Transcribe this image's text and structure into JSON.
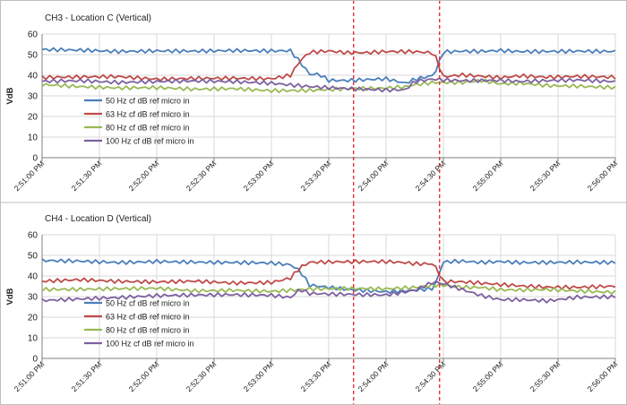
{
  "colors": {
    "series": [
      "#4a7ebb",
      "#be4b48",
      "#98b954",
      "#7d60a0"
    ],
    "grid": "#d9d9d9",
    "axis": "#7f7f7f",
    "divider": "#bfbfbf",
    "marker": "#e0202a"
  },
  "chart_data": [
    {
      "type": "line",
      "title": "CH3 - Location C (Vertical)",
      "ylabel": "VdB",
      "xlabel": "",
      "ylim": [
        0,
        60
      ],
      "yticks": [
        0,
        10,
        20,
        30,
        40,
        50,
        60
      ],
      "xticks": [
        "2:51:00 PM",
        "2:51:30 PM",
        "2:52:00 PM",
        "2:52:30 PM",
        "2:53:00 PM",
        "2:53:30 PM",
        "2:54:00 PM",
        "2:54:30 PM",
        "2:55:00 PM",
        "2:55:30 PM",
        "2:56:00 PM"
      ],
      "grid": true,
      "marker_times": [
        "2:53:43 PM",
        "2:54:28 PM"
      ],
      "legend": [
        "50 Hz cf   dB  ref micro in",
        "63 Hz cf   dB  ref micro in",
        "80 Hz cf   dB  ref micro in",
        "100 Hz cf   dB  ref micro in"
      ],
      "series": [
        {
          "name": "50 Hz cf   dB  ref micro in",
          "x": [
            0,
            20,
            40,
            60,
            80,
            100,
            120,
            130,
            135,
            140,
            145,
            150,
            160,
            180,
            190,
            195,
            205,
            210,
            220,
            230,
            240,
            250,
            265,
            280,
            300
          ],
          "values": [
            52.5,
            52.5,
            52.0,
            52.3,
            52.0,
            52.0,
            51.5,
            51.5,
            46,
            40,
            40,
            37,
            37,
            38,
            36,
            38,
            40,
            51.5,
            52,
            52,
            52.5,
            52,
            52,
            52,
            51.5
          ]
        },
        {
          "name": "63 Hz cf   dB  ref micro in",
          "x": [
            0,
            20,
            40,
            60,
            80,
            100,
            120,
            130,
            135,
            140,
            150,
            160,
            170,
            180,
            190,
            195,
            205,
            210,
            220,
            230,
            240,
            250,
            265,
            280,
            300
          ],
          "values": [
            38.5,
            39,
            39.5,
            38.5,
            39,
            39,
            38.5,
            40,
            47,
            51,
            51.5,
            50.5,
            50.5,
            51,
            51,
            51,
            50.5,
            39,
            40,
            39.5,
            39,
            40,
            39.5,
            40,
            39.5
          ]
        },
        {
          "name": "80 Hz cf   dB  ref micro in",
          "x": [
            0,
            20,
            40,
            60,
            80,
            100,
            120,
            140,
            160,
            180,
            190,
            195,
            205,
            210,
            220,
            230,
            240,
            250,
            265,
            280,
            300
          ],
          "values": [
            35,
            34,
            33.5,
            34,
            33.5,
            34,
            33,
            33,
            33.5,
            33.5,
            34,
            35,
            36,
            36,
            36,
            37,
            35.5,
            36,
            35,
            35,
            34.5
          ]
        },
        {
          "name": "100 Hz cf   dB  ref micro in",
          "x": [
            0,
            20,
            40,
            60,
            80,
            100,
            120,
            140,
            160,
            180,
            190,
            195,
            205,
            210,
            220,
            230,
            240,
            250,
            265,
            280,
            300
          ],
          "values": [
            37,
            37,
            36,
            36.5,
            37,
            37,
            36.5,
            35,
            34,
            33,
            33,
            37,
            38,
            37.5,
            37,
            37,
            37,
            36.5,
            37,
            37.5,
            37
          ]
        }
      ]
    },
    {
      "type": "line",
      "title": "CH4 - Location D (Vertical)",
      "ylabel": "VdB",
      "xlabel": "",
      "ylim": [
        0,
        60
      ],
      "yticks": [
        0,
        10,
        20,
        30,
        40,
        50,
        60
      ],
      "xticks": [
        "2:51:00 PM",
        "2:51:30 PM",
        "2:52:00 PM",
        "2:52:30 PM",
        "2:53:00 PM",
        "2:53:30 PM",
        "2:54:00 PM",
        "2:54:30 PM",
        "2:55:00 PM",
        "2:55:30 PM",
        "2:56:00 PM"
      ],
      "grid": true,
      "marker_times": [
        "2:53:43 PM",
        "2:54:28 PM"
      ],
      "legend": [
        "50 Hz cf   dB  ref micro in",
        "63 Hz cf   dB  ref micro in",
        "80 Hz cf   dB  ref micro in",
        "100 Hz cf   dB  ref micro in"
      ],
      "series": [
        {
          "name": "50 Hz cf   dB  ref micro in",
          "x": [
            0,
            20,
            40,
            60,
            80,
            100,
            120,
            130,
            135,
            140,
            150,
            160,
            180,
            195,
            205,
            210,
            220,
            230,
            240,
            250,
            265,
            280,
            300
          ],
          "values": [
            47.5,
            47.5,
            47,
            47.5,
            47,
            46.5,
            46,
            45,
            42,
            35,
            34,
            33,
            32,
            33,
            34,
            47,
            47.5,
            47,
            47.5,
            47,
            47,
            47,
            46.5
          ]
        },
        {
          "name": "63 Hz cf   dB  ref micro in",
          "x": [
            0,
            20,
            40,
            60,
            80,
            100,
            120,
            130,
            135,
            140,
            150,
            160,
            180,
            190,
            195,
            205,
            210,
            220,
            230,
            240,
            250,
            265,
            280,
            300
          ],
          "values": [
            37,
            38,
            37.5,
            37.5,
            38,
            37,
            37,
            39,
            44,
            46.5,
            46.5,
            46.5,
            46.5,
            46,
            45.5,
            45.5,
            37,
            37,
            36.5,
            36,
            35.5,
            35,
            35,
            35.5
          ]
        },
        {
          "name": "80 Hz cf   dB  ref micro in",
          "x": [
            0,
            20,
            40,
            60,
            80,
            100,
            120,
            140,
            160,
            180,
            195,
            205,
            210,
            220,
            230,
            240,
            250,
            265,
            280,
            300
          ],
          "values": [
            33,
            33,
            33.5,
            34,
            33,
            33.5,
            33,
            34,
            34,
            33.5,
            34,
            35,
            35,
            34,
            34,
            33,
            33,
            33.5,
            33,
            32.5
          ]
        },
        {
          "name": "100 Hz cf   dB  ref micro in",
          "x": [
            0,
            20,
            40,
            60,
            80,
            100,
            120,
            130,
            135,
            140,
            160,
            180,
            195,
            205,
            210,
            220,
            230,
            240,
            250,
            265,
            280,
            300
          ],
          "values": [
            28,
            28.5,
            29,
            30,
            30.5,
            31,
            31,
            30,
            34,
            32,
            31.5,
            31,
            33,
            37,
            36,
            33,
            30,
            28,
            28,
            27.5,
            29.5,
            30
          ]
        }
      ]
    }
  ]
}
